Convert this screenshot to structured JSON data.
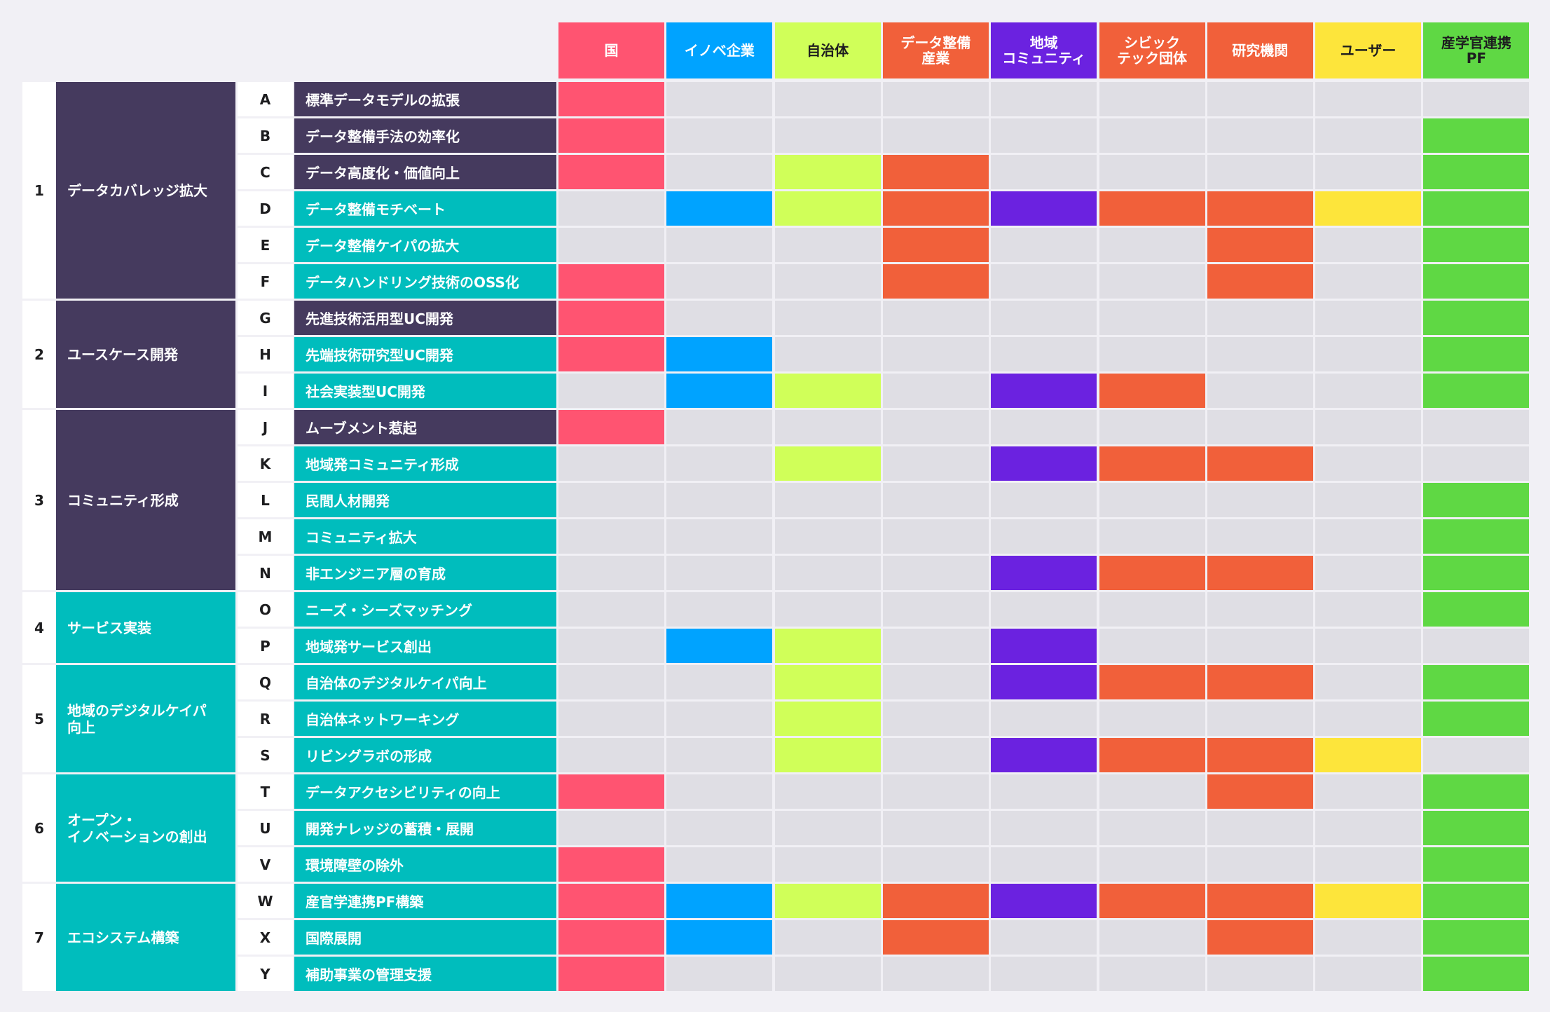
{
  "colors": {
    "background": "#f1f0f5",
    "empty": "#dfdee4",
    "purple_row": "#453a5e",
    "teal_row": "#00bdbd",
    "stakeholders": {
      "kuni": "#ff5471",
      "innove": "#00a3ff",
      "jichitai": "#d0ff59",
      "data_industry": "#f1603a",
      "community": "#6b22e0",
      "civictech": "#f1603a",
      "research": "#f1603a",
      "user": "#fde53b",
      "pf": "#5fd844"
    }
  },
  "headers": [
    {
      "label": "国",
      "color": "#ff5471",
      "dark_text": false
    },
    {
      "label": "イノベ企業",
      "color": "#00a3ff",
      "dark_text": false
    },
    {
      "label": "自治体",
      "color": "#d0ff59",
      "dark_text": true
    },
    {
      "label": "データ整備\n産業",
      "color": "#f1603a",
      "dark_text": false
    },
    {
      "label": "地域\nコミュニティ",
      "color": "#6b22e0",
      "dark_text": false
    },
    {
      "label": "シビック\nテック団体",
      "color": "#f1603a",
      "dark_text": false
    },
    {
      "label": "研究機関",
      "color": "#f1603a",
      "dark_text": false
    },
    {
      "label": "ユーザー",
      "color": "#fde53b",
      "dark_text": true
    },
    {
      "label": "産学官連携\nPF",
      "color": "#5fd844",
      "dark_text": true
    }
  ],
  "groups": [
    {
      "num": "1",
      "label": "データカバレッジ拡大",
      "color": "#453a5e",
      "rows": [
        {
          "letter": "A",
          "label": "標準データモデルの拡張",
          "color": "#453a5e",
          "marks": [
            1,
            0,
            0,
            0,
            0,
            0,
            0,
            0,
            0
          ]
        },
        {
          "letter": "B",
          "label": "データ整備手法の効率化",
          "color": "#453a5e",
          "marks": [
            1,
            0,
            0,
            0,
            0,
            0,
            0,
            0,
            1
          ]
        },
        {
          "letter": "C",
          "label": "データ高度化・価値向上",
          "color": "#453a5e",
          "marks": [
            1,
            0,
            1,
            1,
            0,
            0,
            0,
            0,
            1
          ]
        },
        {
          "letter": "D",
          "label": "データ整備モチベート",
          "color": "#00bdbd",
          "marks": [
            0,
            1,
            1,
            1,
            1,
            1,
            1,
            1,
            1
          ]
        },
        {
          "letter": "E",
          "label": "データ整備ケイパの拡大",
          "color": "#00bdbd",
          "marks": [
            0,
            0,
            0,
            1,
            0,
            0,
            1,
            0,
            1
          ]
        },
        {
          "letter": "F",
          "label": "データハンドリング技術のOSS化",
          "color": "#00bdbd",
          "marks": [
            1,
            0,
            0,
            1,
            0,
            0,
            1,
            0,
            1
          ]
        }
      ]
    },
    {
      "num": "2",
      "label": "ユースケース開発",
      "color": "#453a5e",
      "rows": [
        {
          "letter": "G",
          "label": "先進技術活用型UC開発",
          "color": "#453a5e",
          "marks": [
            1,
            0,
            0,
            0,
            0,
            0,
            0,
            0,
            1
          ]
        },
        {
          "letter": "H",
          "label": "先端技術研究型UC開発",
          "color": "#00bdbd",
          "marks": [
            1,
            1,
            0,
            0,
            0,
            0,
            0,
            0,
            1
          ]
        },
        {
          "letter": "I",
          "label": "社会実装型UC開発",
          "color": "#00bdbd",
          "marks": [
            0,
            1,
            1,
            0,
            1,
            1,
            0,
            0,
            1
          ]
        }
      ]
    },
    {
      "num": "3",
      "label": "コミュニティ形成",
      "color": "#453a5e",
      "rows": [
        {
          "letter": "J",
          "label": "ムーブメント惹起",
          "color": "#453a5e",
          "marks": [
            1,
            0,
            0,
            0,
            0,
            0,
            0,
            0,
            0
          ]
        },
        {
          "letter": "K",
          "label": "地域発コミュニティ形成",
          "color": "#00bdbd",
          "marks": [
            0,
            0,
            1,
            0,
            1,
            1,
            1,
            0,
            0
          ]
        },
        {
          "letter": "L",
          "label": "民間人材開発",
          "color": "#00bdbd",
          "marks": [
            0,
            0,
            0,
            0,
            0,
            0,
            0,
            0,
            1
          ]
        },
        {
          "letter": "M",
          "label": "コミュニティ拡大",
          "color": "#00bdbd",
          "marks": [
            0,
            0,
            0,
            0,
            0,
            0,
            0,
            0,
            1
          ]
        },
        {
          "letter": "N",
          "label": "非エンジニア層の育成",
          "color": "#00bdbd",
          "marks": [
            0,
            0,
            0,
            0,
            1,
            1,
            1,
            0,
            1
          ]
        }
      ]
    },
    {
      "num": "4",
      "label": "サービス実装",
      "color": "#00bdbd",
      "rows": [
        {
          "letter": "O",
          "label": "ニーズ・シーズマッチング",
          "color": "#00bdbd",
          "marks": [
            0,
            0,
            0,
            0,
            0,
            0,
            0,
            0,
            1
          ]
        },
        {
          "letter": "P",
          "label": "地域発サービス創出",
          "color": "#00bdbd",
          "marks": [
            0,
            1,
            1,
            0,
            1,
            0,
            0,
            0,
            0
          ]
        }
      ]
    },
    {
      "num": "5",
      "label": "地域のデジタルケイパ\n向上",
      "color": "#00bdbd",
      "rows": [
        {
          "letter": "Q",
          "label": "自治体のデジタルケイパ向上",
          "color": "#00bdbd",
          "marks": [
            0,
            0,
            1,
            0,
            1,
            1,
            1,
            0,
            1
          ]
        },
        {
          "letter": "R",
          "label": "自治体ネットワーキング",
          "color": "#00bdbd",
          "marks": [
            0,
            0,
            1,
            0,
            0,
            0,
            0,
            0,
            1
          ]
        },
        {
          "letter": "S",
          "label": "リビングラボの形成",
          "color": "#00bdbd",
          "marks": [
            0,
            0,
            1,
            0,
            1,
            1,
            1,
            1,
            0
          ]
        }
      ]
    },
    {
      "num": "6",
      "label": "オープン・\nイノベーションの創出",
      "color": "#00bdbd",
      "rows": [
        {
          "letter": "T",
          "label": "データアクセシビリティの向上",
          "color": "#00bdbd",
          "marks": [
            1,
            0,
            0,
            0,
            0,
            0,
            1,
            0,
            1
          ]
        },
        {
          "letter": "U",
          "label": "開発ナレッジの蓄積・展開",
          "color": "#00bdbd",
          "marks": [
            0,
            0,
            0,
            0,
            0,
            0,
            0,
            0,
            1
          ]
        },
        {
          "letter": "V",
          "label": "環境障壁の除外",
          "color": "#00bdbd",
          "marks": [
            1,
            0,
            0,
            0,
            0,
            0,
            0,
            0,
            1
          ]
        }
      ]
    },
    {
      "num": "7",
      "label": "エコシステム構築",
      "color": "#00bdbd",
      "rows": [
        {
          "letter": "W",
          "label": "産官学連携PF構築",
          "color": "#00bdbd",
          "marks": [
            1,
            1,
            1,
            1,
            1,
            1,
            1,
            1,
            1
          ]
        },
        {
          "letter": "X",
          "label": "国際展開",
          "color": "#00bdbd",
          "marks": [
            1,
            1,
            0,
            1,
            0,
            0,
            1,
            0,
            1
          ]
        },
        {
          "letter": "Y",
          "label": "補助事業の管理支援",
          "color": "#00bdbd",
          "marks": [
            1,
            0,
            0,
            0,
            0,
            0,
            0,
            0,
            1
          ]
        }
      ]
    }
  ]
}
